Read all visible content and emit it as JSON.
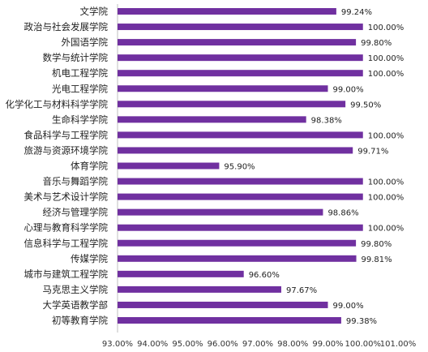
{
  "chart_data": {
    "type": "bar",
    "orientation": "horizontal",
    "categories": [
      "文学院",
      "政治与社会发展学院",
      "外国语学院",
      "数学与统计学院",
      "机电工程学院",
      "光电工程学院",
      "化学化工与材料科学学院",
      "生命科学学院",
      "食品科学与工程学院",
      "旅游与资源环境学院",
      "体育学院",
      "音乐与舞蹈学院",
      "美术与艺术设计学院",
      "经济与管理学院",
      "心理与教育科学学院",
      "信息科学与工程学院",
      "传媒学院",
      "城市与建筑工程学院",
      "马克思主义学院",
      "大学英语教学部",
      "初等教育学院"
    ],
    "values": [
      99.24,
      100.0,
      99.8,
      100.0,
      100.0,
      99.0,
      99.5,
      98.38,
      100.0,
      99.71,
      95.9,
      100.0,
      100.0,
      98.86,
      100.0,
      99.8,
      99.81,
      96.6,
      97.67,
      99.0,
      99.38
    ],
    "value_labels": [
      "99.24%",
      "100.00%",
      "99.80%",
      "100.00%",
      "100.00%",
      "99.00%",
      "99.50%",
      "98.38%",
      "100.00%",
      "99.71%",
      "95.90%",
      "100.00%",
      "100.00%",
      "98.86%",
      "100.00%",
      "99.80%",
      "99.81%",
      "96.60%",
      "97.67%",
      "99.00%",
      "99.38%"
    ],
    "x_ticks": [
      "93.00%",
      "94.00%",
      "95.00%",
      "96.00%",
      "97.00%",
      "98.00%",
      "99.00%",
      "100.00%",
      "101.00%"
    ],
    "xlim": [
      93,
      101
    ],
    "bar_color": "#7030A0",
    "grid": false,
    "legend": "none"
  }
}
